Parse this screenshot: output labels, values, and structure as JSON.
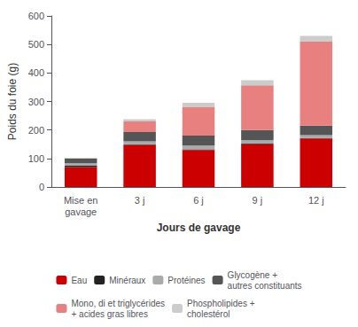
{
  "chart_data": {
    "type": "bar",
    "stacked": true,
    "categories": [
      "Mise en\ngavage",
      "3 j",
      "6 j",
      "9 j",
      "12 j"
    ],
    "xlabel": "Jours de gavage",
    "ylabel": "Poids du foie (g)",
    "ylim": [
      0,
      600
    ],
    "yticks": [
      0,
      100,
      200,
      300,
      400,
      500,
      600
    ],
    "grid": false,
    "legend": "bottom",
    "series": [
      {
        "name": "Eau",
        "color": "#cc0000",
        "values": [
          70,
          148,
          130,
          150,
          170
        ]
      },
      {
        "name": "Minéraux",
        "color": "#222222",
        "values": [
          5,
          2,
          2,
          2,
          2
        ]
      },
      {
        "name": "Protéines",
        "color": "#aaaaaa",
        "values": [
          8,
          10,
          13,
          12,
          10
        ]
      },
      {
        "name": "Glycogène +\nautres constituants",
        "color": "#555555",
        "values": [
          17,
          33,
          35,
          36,
          33
        ]
      },
      {
        "name": "Mono, di et triglycérides\n+ acides gras libres",
        "color": "#e88080",
        "values": [
          0,
          37,
          100,
          157,
          295
        ]
      },
      {
        "name": "Phospholipides +\ncholestérol",
        "color": "#cccccc",
        "values": [
          0,
          8,
          15,
          18,
          20
        ]
      }
    ]
  }
}
